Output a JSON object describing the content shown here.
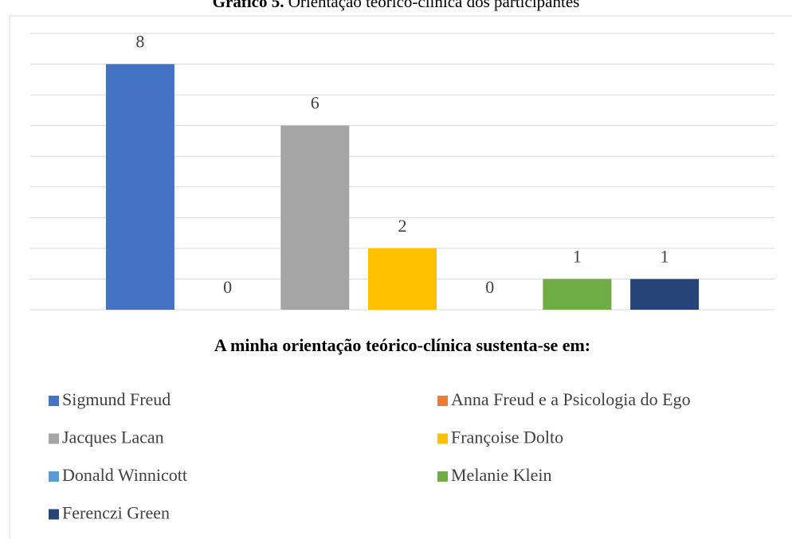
{
  "chart_data": {
    "type": "bar",
    "title_label": "Gráfico 5.",
    "title": "Orientação teórico-clínica dos participantes",
    "x_label": "A minha orientação teórico-clínica sustenta-se em:",
    "categories": [
      null
    ],
    "series": [
      {
        "name": "Sigmund Freud",
        "color": "#4472c4",
        "values": [
          8
        ]
      },
      {
        "name": "Anna Freud e a Psicologia do Ego",
        "color": "#ed7d31",
        "values": [
          0
        ]
      },
      {
        "name": "Jacques Lacan",
        "color": "#a5a5a5",
        "values": [
          6
        ]
      },
      {
        "name": "Françoise Dolto",
        "color": "#ffc000",
        "values": [
          2
        ]
      },
      {
        "name": "Donald Winnicott",
        "color": "#5b9bd5",
        "values": [
          0
        ]
      },
      {
        "name": "Melanie Klein",
        "color": "#70ad47",
        "values": [
          1
        ]
      },
      {
        "name": "Ferenczi Green",
        "color": "#264478",
        "values": [
          1
        ]
      }
    ],
    "ylim": [
      0,
      9
    ],
    "yticks": [
      0,
      1,
      2,
      3,
      4,
      5,
      6,
      7,
      8,
      9
    ],
    "grid": true,
    "legend": "bottom"
  }
}
